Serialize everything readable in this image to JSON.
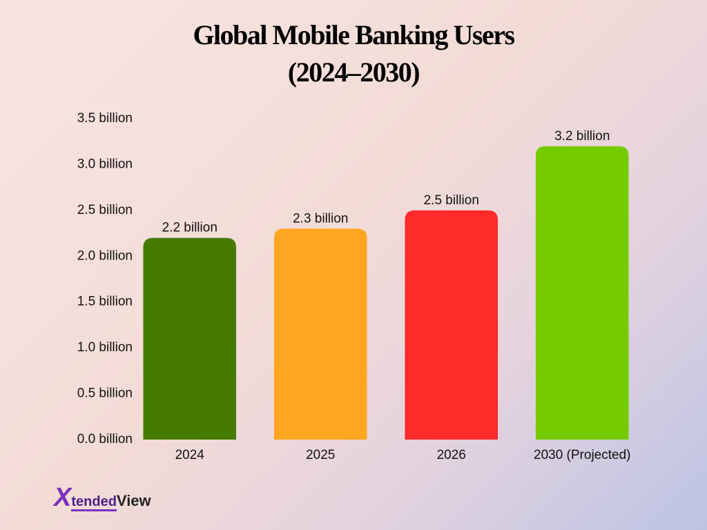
{
  "chart_data": {
    "type": "bar",
    "title": "Global Mobile Banking Users\n(2024–2030)",
    "categories": [
      "2024",
      "2025",
      "2026",
      "2030 (Projected)"
    ],
    "values": [
      2.2,
      2.3,
      2.5,
      3.2
    ],
    "value_labels": [
      "2.2 billion",
      "2.3 billion",
      "2.5 billion",
      "3.2 billion"
    ],
    "colors": [
      "#457b00",
      "#ffa520",
      "#ff2a2a",
      "#74cc00"
    ],
    "ylim": [
      0,
      3.5
    ],
    "yticks": [
      {
        "value": 0,
        "label": "0.0 billion"
      },
      {
        "value": 0.5,
        "label": "0.5 billion"
      },
      {
        "value": 1,
        "label": "1.0 billion"
      },
      {
        "value": 1.5,
        "label": "1.5 billion"
      },
      {
        "value": 2,
        "label": "2.0 billion"
      },
      {
        "value": 2.5,
        "label": "2.5 billion"
      },
      {
        "value": 3,
        "label": "3.0 billion"
      },
      {
        "value": 3.5,
        "label": "3.5 billion"
      }
    ],
    "grid": false
  },
  "brand": [
    "X",
    "tended",
    "View"
  ]
}
